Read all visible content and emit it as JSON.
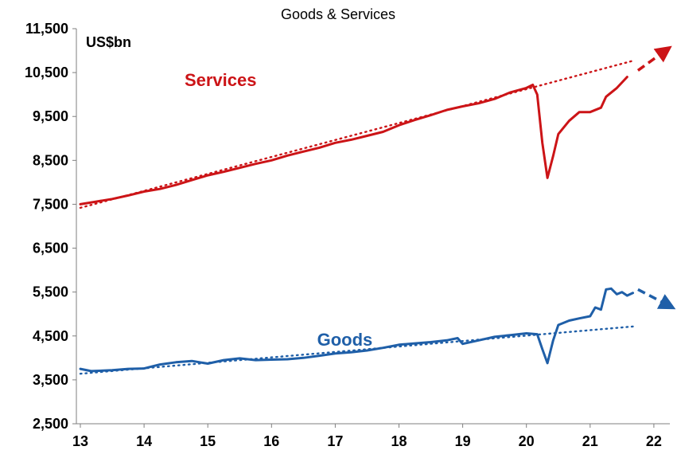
{
  "chart_data": {
    "type": "line",
    "title": "Goods & Services",
    "unit_label": "US$bn",
    "xlabel": "",
    "ylabel": "",
    "x_ticks": [
      "13",
      "14",
      "15",
      "16",
      "17",
      "18",
      "19",
      "20",
      "21",
      "22"
    ],
    "y_ticks": [
      "2,500",
      "3,500",
      "4,500",
      "5,500",
      "6,500",
      "7,500",
      "8,500",
      "9,500",
      "10,500",
      "11,500"
    ],
    "xlim": [
      2013,
      2022.5
    ],
    "ylim": [
      2500,
      11500
    ],
    "grid": false,
    "legend": "none",
    "colors": {
      "services": "#cc1417",
      "goods": "#1f5fa8"
    },
    "series": [
      {
        "name": "Services",
        "style": "solid",
        "points": [
          [
            2013.0,
            7500
          ],
          [
            2013.25,
            7560
          ],
          [
            2013.5,
            7620
          ],
          [
            2013.75,
            7700
          ],
          [
            2014.0,
            7790
          ],
          [
            2014.25,
            7850
          ],
          [
            2014.5,
            7940
          ],
          [
            2014.75,
            8050
          ],
          [
            2015.0,
            8160
          ],
          [
            2015.25,
            8240
          ],
          [
            2015.5,
            8330
          ],
          [
            2015.75,
            8420
          ],
          [
            2016.0,
            8500
          ],
          [
            2016.25,
            8610
          ],
          [
            2016.5,
            8700
          ],
          [
            2016.75,
            8790
          ],
          [
            2017.0,
            8900
          ],
          [
            2017.25,
            8970
          ],
          [
            2017.5,
            9060
          ],
          [
            2017.75,
            9150
          ],
          [
            2018.0,
            9300
          ],
          [
            2018.25,
            9420
          ],
          [
            2018.5,
            9530
          ],
          [
            2018.75,
            9650
          ],
          [
            2019.0,
            9730
          ],
          [
            2019.25,
            9800
          ],
          [
            2019.5,
            9900
          ],
          [
            2019.75,
            10050
          ],
          [
            2020.0,
            10150
          ],
          [
            2020.1,
            10220
          ],
          [
            2020.17,
            10000
          ],
          [
            2020.25,
            8900
          ],
          [
            2020.33,
            8100
          ],
          [
            2020.42,
            8600
          ],
          [
            2020.5,
            9100
          ],
          [
            2020.67,
            9400
          ],
          [
            2020.83,
            9600
          ],
          [
            2021.0,
            9600
          ],
          [
            2021.17,
            9700
          ],
          [
            2021.25,
            9950
          ],
          [
            2021.42,
            10150
          ],
          [
            2021.58,
            10400
          ]
        ]
      },
      {
        "name": "Goods",
        "style": "solid",
        "points": [
          [
            2013.0,
            3750
          ],
          [
            2013.17,
            3700
          ],
          [
            2013.5,
            3720
          ],
          [
            2013.75,
            3750
          ],
          [
            2014.0,
            3760
          ],
          [
            2014.25,
            3850
          ],
          [
            2014.5,
            3900
          ],
          [
            2014.75,
            3930
          ],
          [
            2015.0,
            3870
          ],
          [
            2015.25,
            3950
          ],
          [
            2015.5,
            3990
          ],
          [
            2015.75,
            3950
          ],
          [
            2016.0,
            3960
          ],
          [
            2016.25,
            3970
          ],
          [
            2016.5,
            4000
          ],
          [
            2016.75,
            4050
          ],
          [
            2017.0,
            4100
          ],
          [
            2017.25,
            4130
          ],
          [
            2017.5,
            4170
          ],
          [
            2017.75,
            4230
          ],
          [
            2018.0,
            4300
          ],
          [
            2018.25,
            4330
          ],
          [
            2018.5,
            4360
          ],
          [
            2018.75,
            4400
          ],
          [
            2018.92,
            4450
          ],
          [
            2019.0,
            4320
          ],
          [
            2019.25,
            4400
          ],
          [
            2019.5,
            4480
          ],
          [
            2019.75,
            4520
          ],
          [
            2020.0,
            4560
          ],
          [
            2020.17,
            4540
          ],
          [
            2020.25,
            4200
          ],
          [
            2020.33,
            3880
          ],
          [
            2020.42,
            4400
          ],
          [
            2020.5,
            4750
          ],
          [
            2020.67,
            4850
          ],
          [
            2020.83,
            4900
          ],
          [
            2021.0,
            4950
          ],
          [
            2021.08,
            5150
          ],
          [
            2021.17,
            5100
          ],
          [
            2021.25,
            5560
          ],
          [
            2021.33,
            5580
          ],
          [
            2021.42,
            5450
          ],
          [
            2021.5,
            5500
          ],
          [
            2021.58,
            5420
          ],
          [
            2021.67,
            5480
          ]
        ]
      },
      {
        "name": "",
        "style": "dotted-trend",
        "color_key": "services",
        "points": [
          [
            2013.0,
            7420
          ],
          [
            2021.7,
            10780
          ]
        ]
      },
      {
        "name": "",
        "style": "dotted-trend",
        "color_key": "goods",
        "points": [
          [
            2013.0,
            3640
          ],
          [
            2021.7,
            4720
          ]
        ]
      },
      {
        "name": "",
        "style": "dashed-arrow",
        "color_key": "services",
        "points": [
          [
            2021.75,
            10550
          ],
          [
            2022.2,
            11020
          ]
        ]
      },
      {
        "name": "",
        "style": "dashed-arrow",
        "color_key": "goods",
        "points": [
          [
            2021.75,
            5560
          ],
          [
            2022.25,
            5180
          ]
        ]
      }
    ],
    "annotations": [
      {
        "text": "Services",
        "color_key": "services",
        "x": 2015.2,
        "y": 10190
      },
      {
        "text": "Goods",
        "color_key": "goods",
        "x": 2017.15,
        "y": 4280
      }
    ]
  }
}
